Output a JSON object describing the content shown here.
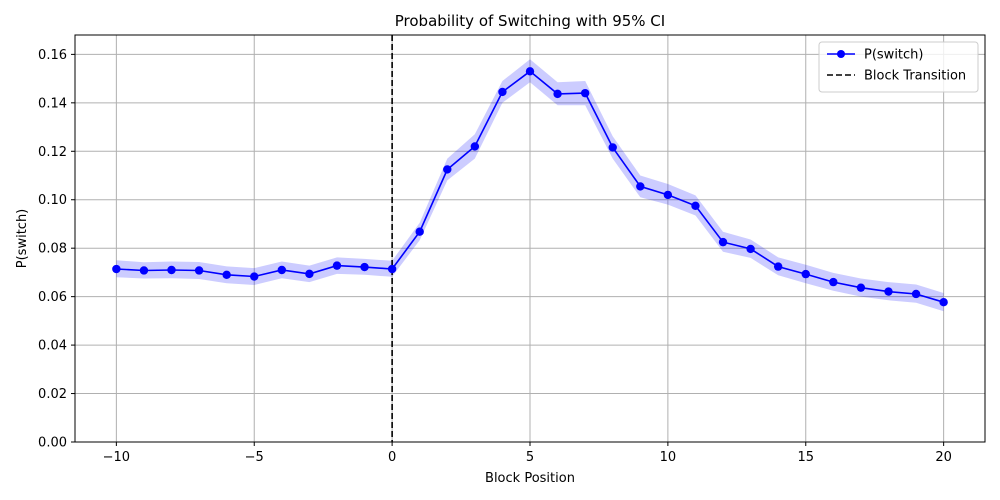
{
  "chart_data": {
    "type": "line",
    "title": "Probability of Switching with 95% CI",
    "xlabel": "Block Position",
    "ylabel": "P(switch)",
    "xlim": [
      -11.5,
      21.5
    ],
    "ylim": [
      0,
      0.168
    ],
    "xticks": [
      -10,
      -5,
      0,
      5,
      10,
      15,
      20
    ],
    "xtick_labels": [
      "−10",
      "−5",
      "0",
      "5",
      "10",
      "15",
      "20"
    ],
    "yticks": [
      0,
      0.02,
      0.04,
      0.06,
      0.08,
      0.1,
      0.12,
      0.14,
      0.16
    ],
    "ytick_labels": [
      "0.00",
      "0.02",
      "0.04",
      "0.06",
      "0.08",
      "0.10",
      "0.12",
      "0.14",
      "0.16"
    ],
    "grid": true,
    "legend_position": "top-right",
    "x": [
      -10,
      -9,
      -8,
      -7,
      -6,
      -5,
      -4,
      -3,
      -2,
      -1,
      0,
      1,
      2,
      3,
      4,
      5,
      6,
      7,
      8,
      9,
      10,
      11,
      12,
      13,
      14,
      15,
      16,
      17,
      18,
      19,
      20
    ],
    "series": [
      {
        "name": "P(switch)",
        "color": "#0000ff",
        "ci_color": "#0000ff",
        "values": [
          0.0714,
          0.0708,
          0.071,
          0.0708,
          0.069,
          0.0683,
          0.071,
          0.0694,
          0.0728,
          0.0722,
          0.0714,
          0.0868,
          0.1125,
          0.122,
          0.1445,
          0.153,
          0.1437,
          0.144,
          0.1216,
          0.1055,
          0.102,
          0.0975,
          0.0825,
          0.0797,
          0.0724,
          0.0693,
          0.066,
          0.0637,
          0.0621,
          0.0611,
          0.0577
        ],
        "ci_lower": [
          0.068,
          0.0675,
          0.0676,
          0.0673,
          0.0655,
          0.0648,
          0.0676,
          0.066,
          0.0694,
          0.069,
          0.0682,
          0.0833,
          0.108,
          0.117,
          0.14,
          0.1485,
          0.139,
          0.139,
          0.117,
          0.101,
          0.098,
          0.0935,
          0.0785,
          0.076,
          0.0688,
          0.0655,
          0.0624,
          0.06,
          0.0585,
          0.0575,
          0.054
        ],
        "ci_upper": [
          0.075,
          0.0742,
          0.0745,
          0.0743,
          0.0725,
          0.0718,
          0.0745,
          0.0728,
          0.0762,
          0.0756,
          0.0748,
          0.0905,
          0.117,
          0.127,
          0.149,
          0.158,
          0.1485,
          0.149,
          0.1262,
          0.11,
          0.1065,
          0.1018,
          0.0868,
          0.0836,
          0.0762,
          0.0732,
          0.0698,
          0.0675,
          0.066,
          0.065,
          0.0615
        ]
      }
    ],
    "annotations": [
      {
        "name": "Block Transition",
        "type": "vline",
        "x": 0,
        "color": "#000000",
        "style": "dashed"
      }
    ]
  }
}
